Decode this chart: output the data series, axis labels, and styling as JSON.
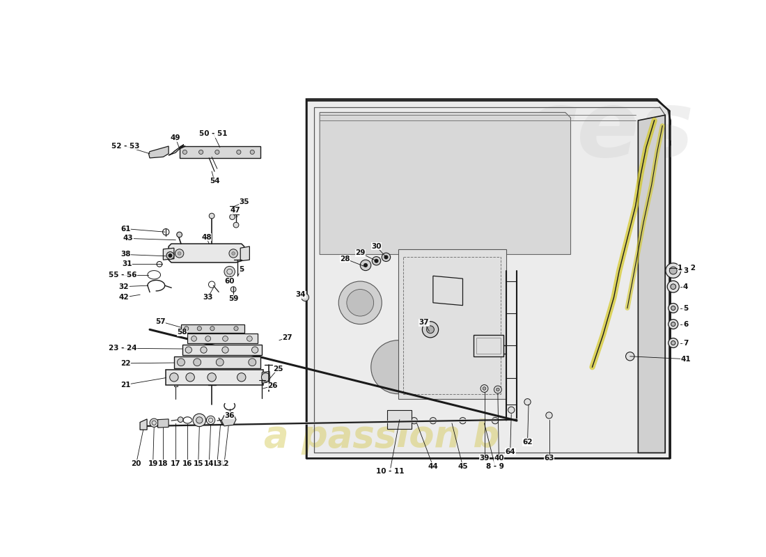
{
  "bg_color": "#ffffff",
  "lc": "#1a1a1a",
  "lw": 1.0,
  "label_fs": 7.5,
  "label_fw": "bold",
  "wm_color": "#cccccc",
  "wm_color2": "#d4c850",
  "door_fill": "#e8e8e8",
  "door_fill2": "#d4d4d4",
  "part_fill": "#f0f0f0"
}
